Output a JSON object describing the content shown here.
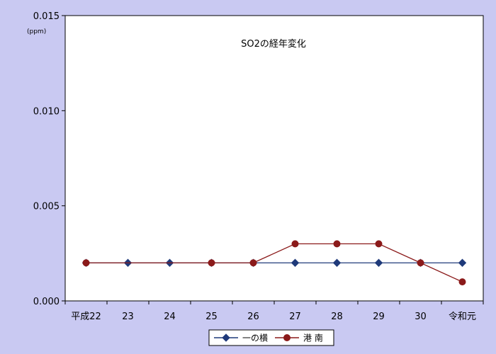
{
  "chart_data": {
    "type": "line",
    "title": "SO2の経年変化",
    "ylabel": "(ppm)",
    "xlabel": "",
    "ylim": [
      0,
      0.015
    ],
    "y_ticks": [
      "0.000",
      "0.005",
      "0.010",
      "0.015"
    ],
    "y_tick_values": [
      0,
      0.005,
      0.01,
      0.015
    ],
    "categories": [
      "平成22",
      "23",
      "24",
      "25",
      "26",
      "27",
      "28",
      "29",
      "30",
      "令和元"
    ],
    "series": [
      {
        "name": "一の横",
        "color": "#1f3a7a",
        "marker": "diamond",
        "values": [
          0.002,
          0.002,
          0.002,
          0.002,
          0.002,
          0.002,
          0.002,
          0.002,
          0.002,
          0.002
        ]
      },
      {
        "name": "港 南",
        "color": "#8b1a1a",
        "marker": "circle",
        "values": [
          0.002,
          null,
          null,
          0.002,
          0.002,
          0.003,
          0.003,
          0.003,
          0.002,
          0.001
        ]
      }
    ],
    "grid": false,
    "legend_position": "bottom"
  }
}
